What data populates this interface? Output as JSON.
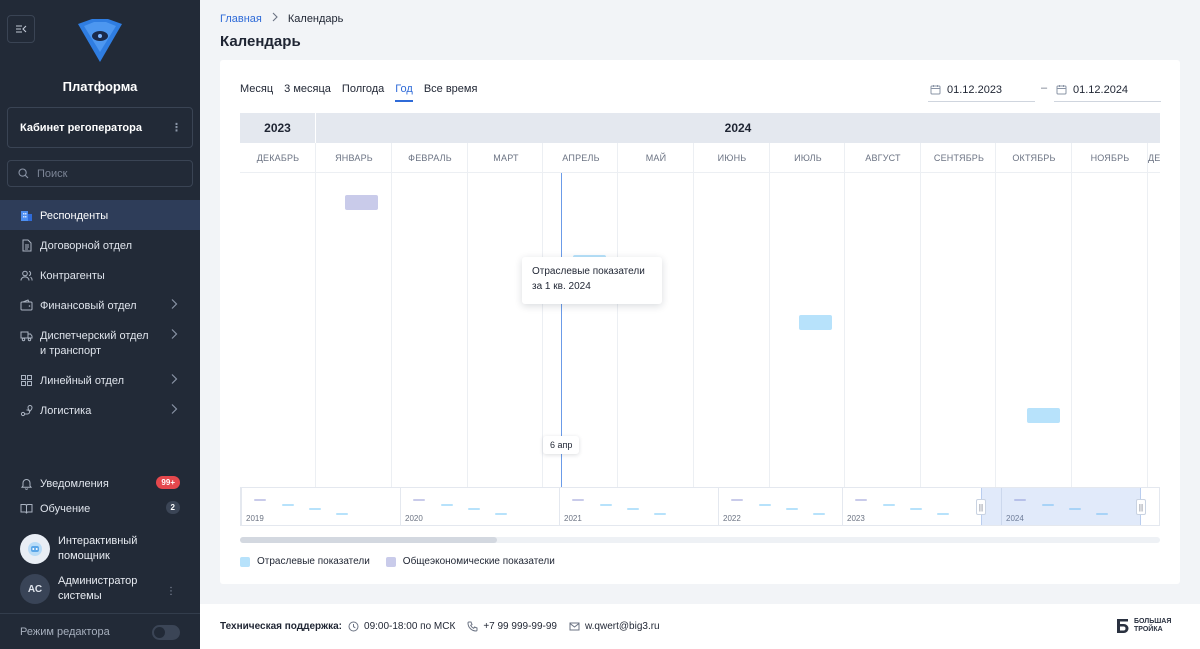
{
  "sidebar": {
    "platform_title": "Платформа",
    "cabinet_label": "Кабинет регоператора",
    "search_placeholder": "Поиск",
    "items": [
      {
        "label": "Респонденты",
        "icon": "building-icon",
        "active": true
      },
      {
        "label": "Договорной отдел",
        "icon": "document-icon"
      },
      {
        "label": "Контрагенты",
        "icon": "users-icon"
      },
      {
        "label": "Финансовый отдел",
        "icon": "wallet-icon",
        "chevron": true
      },
      {
        "label": "Диспетчерский отдел и транспорт",
        "icon": "truck-icon",
        "chevron": true
      },
      {
        "label": "Линейный отдел",
        "icon": "grid-icon",
        "chevron": true
      },
      {
        "label": "Логистика",
        "icon": "route-icon",
        "chevron": true
      }
    ],
    "notifications_label": "Уведомления",
    "notifications_badge": "99+",
    "learning_label": "Обучение",
    "learning_badge": "2",
    "assistant_label": "Интерактивный помощник",
    "admin_initials": "АС",
    "admin_label": "Администратор системы",
    "editor_mode_label": "Режим редактора"
  },
  "breadcrumb": {
    "home": "Главная",
    "current": "Календарь"
  },
  "page_title": "Календарь",
  "periods": [
    {
      "label": "Месяц"
    },
    {
      "label": "3 месяца"
    },
    {
      "label": "Полгода"
    },
    {
      "label": "Год",
      "active": true
    },
    {
      "label": "Все время"
    }
  ],
  "date_from": "01.12.2023",
  "date_to": "01.12.2024",
  "date_separator": "–",
  "timeline": {
    "years": [
      {
        "label": "2023"
      },
      {
        "label": "2024"
      }
    ],
    "months": [
      "ДЕКАБРЬ",
      "ЯНВАРЬ",
      "ФЕВРАЛЬ",
      "МАРТ",
      "АПРЕЛЬ",
      "МАЙ",
      "ИЮНЬ",
      "ИЮЛЬ",
      "АВГУСТ",
      "СЕНТЯБРЬ",
      "ОКТЯБРЬ",
      "НОЯБРЬ",
      "ДЕ"
    ],
    "today_label": "6 апр",
    "tooltip_line1": "Отраслевые показатели",
    "tooltip_line2": "за 1 кв. 2024"
  },
  "minimap": {
    "years": [
      "2019",
      "2020",
      "2021",
      "2022",
      "2023",
      "2024"
    ]
  },
  "legend": {
    "industry": "Отраслевые показатели",
    "economy": "Общеэкономические показатели"
  },
  "colors": {
    "industry": "#b7e2fb",
    "economy": "#c9cbea",
    "accent": "#2f6bd8",
    "sidebar_bg": "#222a37"
  },
  "footer": {
    "lead": "Техническая поддержка:",
    "hours": "09:00-18:00 по МСК",
    "phone": "+7 99 999-99-99",
    "email": "w.qwert@big3.ru",
    "brand_line1": "БОЛЬШАЯ",
    "brand_line2": "ТРОЙКА"
  }
}
